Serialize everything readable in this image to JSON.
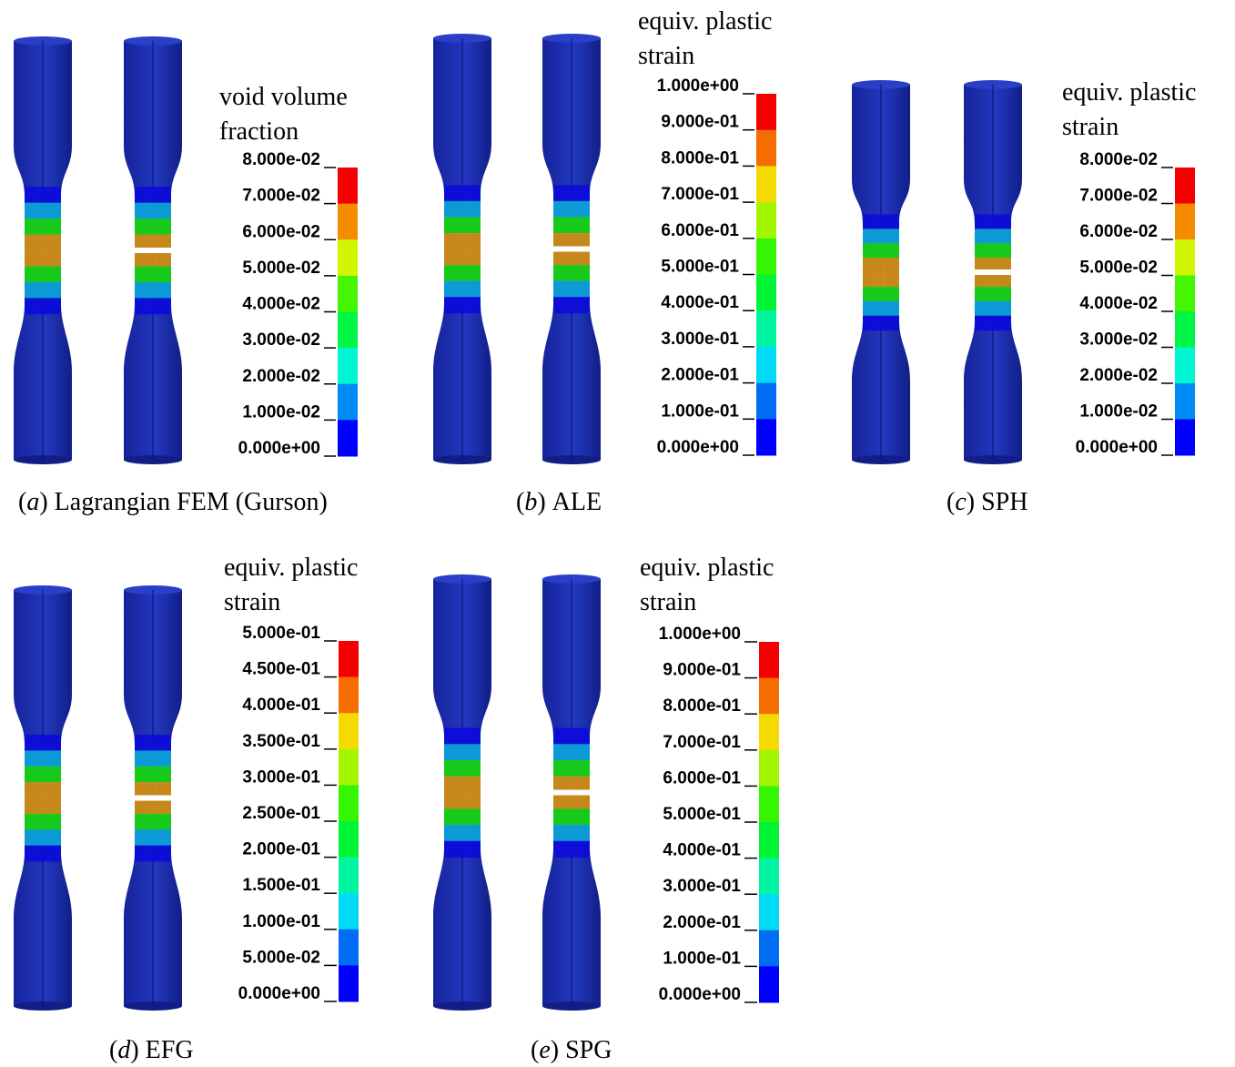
{
  "panels": [
    {
      "caption": {
        "open": "(",
        "letter": "a",
        "close": ")",
        "text": "Lagrangian FEM (Gurson)"
      },
      "legend": {
        "title": [
          "void volume",
          "fraction"
        ],
        "ticks": [
          "8.000e-02",
          "7.000e-02",
          "6.000e-02",
          "5.000e-02",
          "4.000e-02",
          "3.000e-02",
          "2.000e-02",
          "1.000e-02",
          "0.000e+00"
        ]
      }
    },
    {
      "caption": {
        "open": "(",
        "letter": "b",
        "close": ")",
        "text": "ALE"
      },
      "legend": {
        "title": [
          "equiv. plastic",
          "strain"
        ],
        "ticks": [
          "1.000e+00",
          "9.000e-01",
          "8.000e-01",
          "7.000e-01",
          "6.000e-01",
          "5.000e-01",
          "4.000e-01",
          "3.000e-01",
          "2.000e-01",
          "1.000e-01",
          "0.000e+00"
        ]
      }
    },
    {
      "caption": {
        "open": "(",
        "letter": "c",
        "close": ")",
        "text": "SPH"
      },
      "legend": {
        "title": [
          "equiv. plastic",
          "strain"
        ],
        "ticks": [
          "8.000e-02",
          "7.000e-02",
          "6.000e-02",
          "5.000e-02",
          "4.000e-02",
          "3.000e-02",
          "2.000e-02",
          "1.000e-02",
          "0.000e+00"
        ]
      }
    },
    {
      "caption": {
        "open": "(",
        "letter": "d",
        "close": ")",
        "text": "EFG"
      },
      "legend": {
        "title": [
          "equiv. plastic",
          "strain"
        ],
        "ticks": [
          "5.000e-01",
          "4.500e-01",
          "4.000e-01",
          "3.500e-01",
          "3.000e-01",
          "2.500e-01",
          "2.000e-01",
          "1.500e-01",
          "1.000e-01",
          "5.000e-02",
          "0.000e+00"
        ]
      }
    },
    {
      "caption": {
        "open": "(",
        "letter": "e",
        "close": ")",
        "text": "SPG"
      },
      "legend": {
        "title": [
          "equiv. plastic",
          "strain"
        ],
        "ticks": [
          "1.000e+00",
          "9.000e-01",
          "8.000e-01",
          "7.000e-01",
          "6.000e-01",
          "5.000e-01",
          "4.000e-01",
          "3.000e-01",
          "2.000e-01",
          "1.000e-01",
          "0.000e+00"
        ]
      }
    }
  ]
}
